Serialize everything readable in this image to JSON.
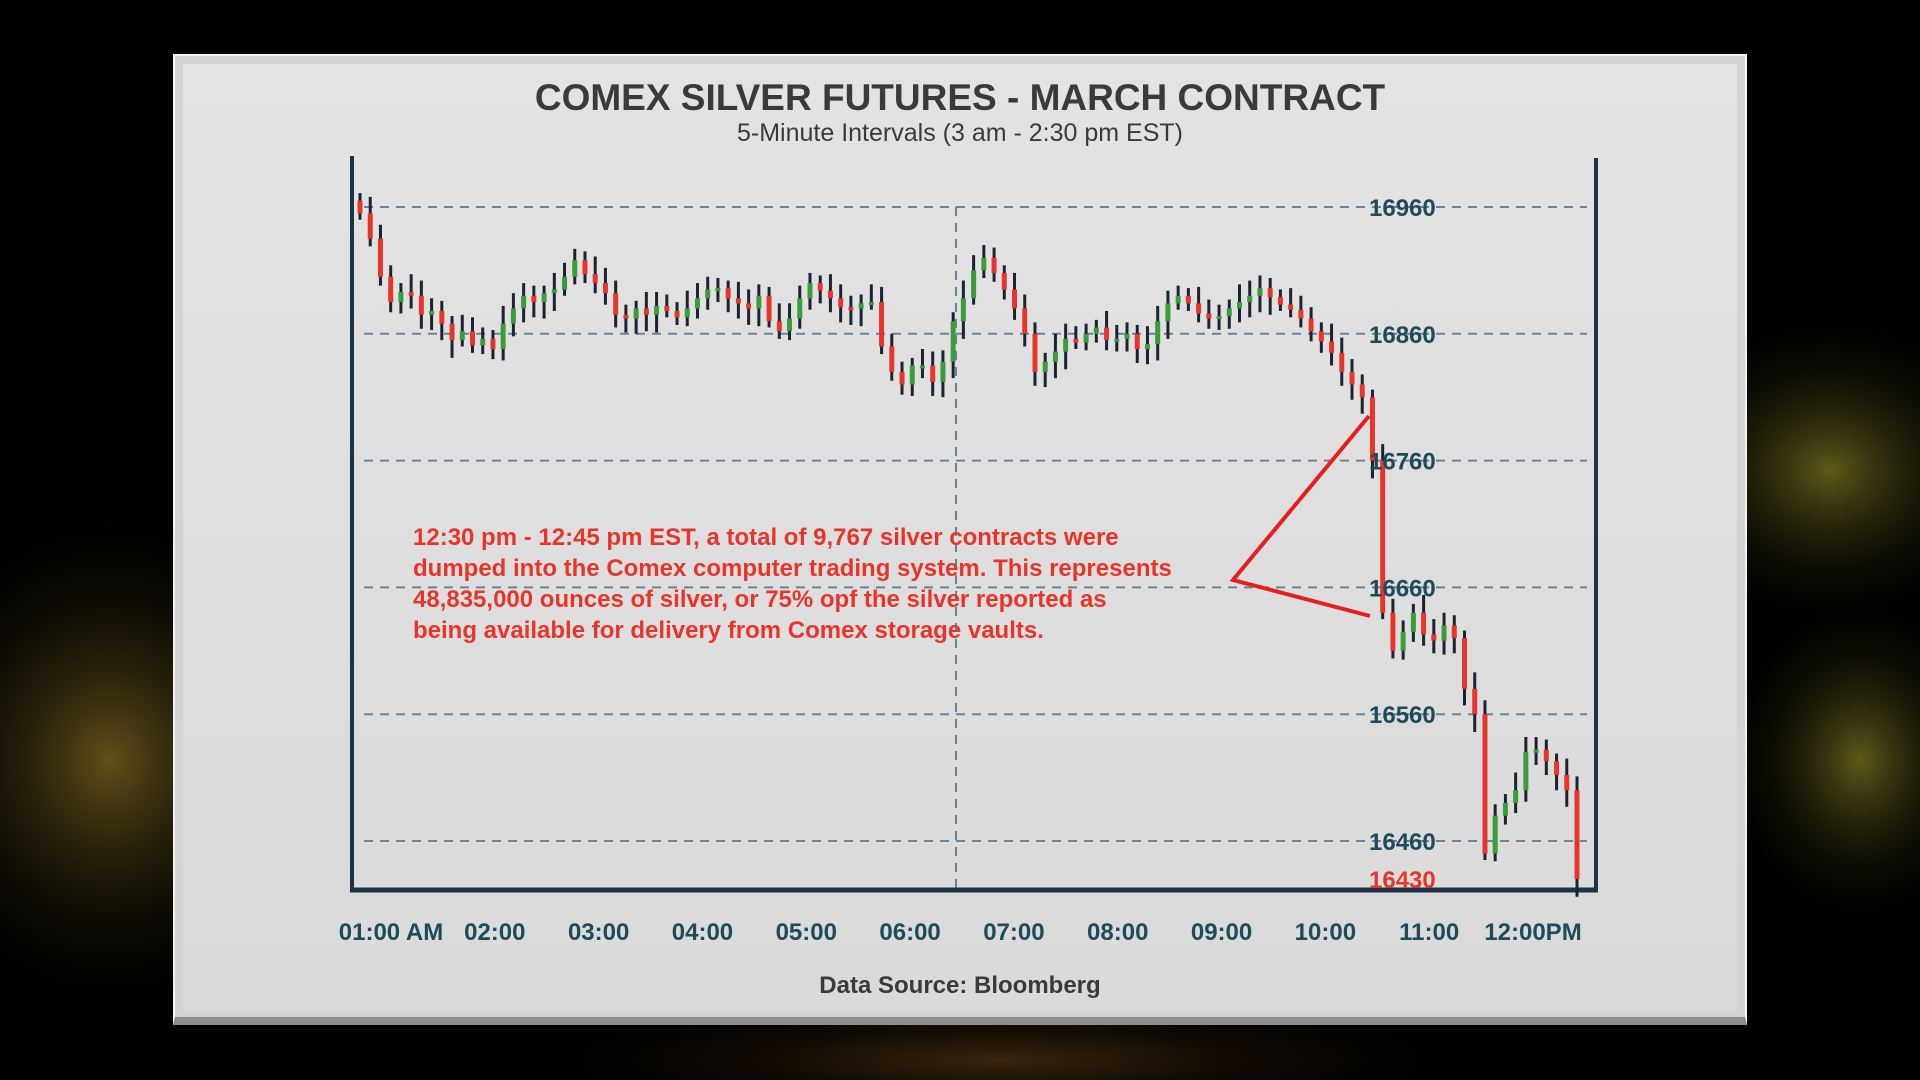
{
  "chart_data": {
    "type": "ohlc",
    "title": "COMEX SILVER FUTURES - MARCH CONTRACT",
    "subtitle": "5-Minute Intervals (3 am - 2:30 pm EST)",
    "source": "Data Source: Bloomberg",
    "annotation": [
      "12:30 pm - 12:45 pm EST, a total of 9,767 silver contracts were",
      "dumped into the Comex computer trading system. This represents",
      "48,835,000 ounces of silver, or 75% opf the silver reported as",
      "being available for delivery from Comex storage vaults."
    ],
    "y_ticks": [
      "16960",
      "16860",
      "16760",
      "16660",
      "16560",
      "16460"
    ],
    "y_last_label": "16430",
    "ylim": [
      16420,
      16970
    ],
    "x_ticks": [
      "01:00 AM",
      "02:00",
      "03:00",
      "04:00",
      "05:00",
      "06:00",
      "07:00",
      "08:00",
      "09:00",
      "10:00",
      "11:00",
      "12:00PM"
    ],
    "grid": "dashed horizontal",
    "colors": {
      "up": "#3a9c3a",
      "down": "#e8352c",
      "bar": "#1b2333",
      "axis": "#1f3348",
      "last_price": "#e8352c"
    },
    "close_path": [
      16955,
      16935,
      16905,
      16885,
      16893,
      16890,
      16875,
      16878,
      16868,
      16855,
      16862,
      16851,
      16856,
      16848,
      16868,
      16880,
      16890,
      16885,
      16892,
      16895,
      16905,
      16918,
      16907,
      16900,
      16892,
      16875,
      16872,
      16880,
      16875,
      16882,
      16878,
      16873,
      16880,
      16888,
      16895,
      16896,
      16888,
      16884,
      16880,
      16890,
      16870,
      16862,
      16872,
      16888,
      16900,
      16894,
      16888,
      16881,
      16880,
      16884,
      16885,
      16850,
      16830,
      16820,
      16835,
      16835,
      16822,
      16838,
      16870,
      16888,
      16910,
      16920,
      16908,
      16895,
      16880,
      16860,
      16830,
      16838,
      16846,
      16856,
      16853,
      16860,
      16865,
      16855,
      16856,
      16860,
      16848,
      16852,
      16870,
      16884,
      16890,
      16884,
      16876,
      16872,
      16874,
      16880,
      16885,
      16890,
      16896,
      16889,
      16883,
      16879,
      16872,
      16862,
      16854,
      16845,
      16830,
      16820,
      16810,
      16760,
      16640,
      16610,
      16625,
      16640,
      16623,
      16618,
      16630,
      16620,
      16580,
      16560,
      16450,
      16480,
      16490,
      16500,
      16530,
      16532,
      16523,
      16512,
      16500,
      16430
    ]
  }
}
